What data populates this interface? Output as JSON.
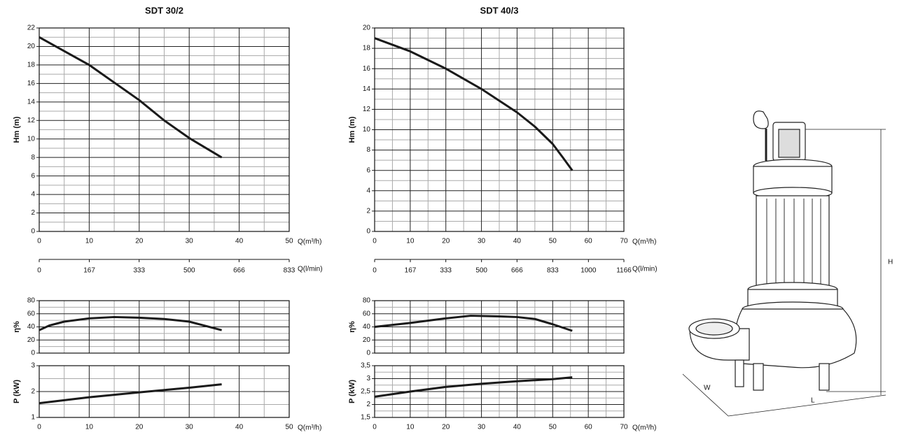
{
  "chart_data": [
    {
      "type": "line",
      "title": "SDT 30/2",
      "ylabel": "Hm   (m)",
      "xlabel": "Q(m³/h)",
      "xlim": [
        0,
        50
      ],
      "xticks": [
        0,
        10,
        20,
        30,
        40,
        50
      ],
      "ylim": [
        0,
        22
      ],
      "yticks": [
        0,
        2,
        4,
        6,
        8,
        10,
        12,
        14,
        16,
        18,
        20,
        22
      ],
      "x2label": "Q(l/min)",
      "x2lim": [
        0,
        833
      ],
      "x2ticks": [
        0,
        167,
        333,
        500,
        666,
        833
      ],
      "grid": true,
      "color": "#1a1a1a",
      "x": [
        0,
        5,
        10,
        15,
        20,
        25,
        30,
        36.5
      ],
      "values": [
        21,
        19.5,
        18,
        16.1,
        14.2,
        12,
        10.1,
        8
      ]
    },
    {
      "type": "line",
      "ylabel": "η%",
      "xlim": [
        0,
        50
      ],
      "xticks": [
        0,
        10,
        20,
        30,
        40,
        50
      ],
      "xtick_labels": false,
      "ylim": [
        0,
        80
      ],
      "yticks": [
        0,
        20,
        40,
        60,
        80
      ],
      "grid": true,
      "color": "#1a1a1a",
      "x": [
        0,
        2,
        5,
        10,
        15,
        20,
        25,
        30,
        36.5
      ],
      "values": [
        35,
        42,
        48,
        53,
        55,
        54,
        52,
        48,
        35
      ]
    },
    {
      "type": "line",
      "ylabel": "P  (kW)",
      "xlabel": "Q(m³/h)",
      "xlim": [
        0,
        50
      ],
      "xticks": [
        0,
        10,
        20,
        30,
        40,
        50
      ],
      "ylim": [
        1,
        3
      ],
      "yticks": [
        1,
        2,
        3
      ],
      "grid": true,
      "color": "#1a1a1a",
      "x": [
        0,
        10,
        20,
        30,
        36.5
      ],
      "values": [
        1.55,
        1.78,
        1.97,
        2.15,
        2.28
      ]
    },
    {
      "type": "line",
      "title": "SDT 40/3",
      "ylabel": "Hm   (m)",
      "xlabel": "Q(m³/h)",
      "xlim": [
        0,
        70
      ],
      "xticks": [
        0,
        10,
        20,
        30,
        40,
        50,
        60,
        70
      ],
      "ylim": [
        0,
        20
      ],
      "yticks": [
        0,
        2,
        4,
        6,
        8,
        10,
        12,
        14,
        16,
        18,
        20
      ],
      "x2label": "Q(l/min)",
      "x2lim": [
        0,
        1166
      ],
      "x2ticks": [
        0,
        167,
        333,
        500,
        666,
        833,
        1000,
        1166
      ],
      "grid": true,
      "color": "#1a1a1a",
      "x": [
        0,
        10,
        20,
        30,
        40,
        45,
        50,
        53,
        55.5
      ],
      "values": [
        19,
        17.7,
        16,
        14,
        11.7,
        10.3,
        8.6,
        7.2,
        6
      ]
    },
    {
      "type": "line",
      "ylabel": "η%",
      "xlim": [
        0,
        70
      ],
      "xticks": [
        0,
        10,
        20,
        30,
        40,
        50,
        60,
        70
      ],
      "xtick_labels": false,
      "ylim": [
        0,
        80
      ],
      "yticks": [
        0,
        20,
        40,
        60,
        80
      ],
      "grid": true,
      "color": "#1a1a1a",
      "x": [
        0,
        10,
        20,
        27,
        35,
        40,
        45,
        50,
        55.5
      ],
      "values": [
        40,
        46,
        53,
        57,
        56,
        55,
        52,
        44,
        34
      ]
    },
    {
      "type": "line",
      "ylabel": "P  (kW)",
      "xlabel": "Q(m³/h)",
      "xlim": [
        0,
        70
      ],
      "xticks": [
        0,
        10,
        20,
        30,
        40,
        50,
        60,
        70
      ],
      "ylim": [
        1.5,
        3.5
      ],
      "yticks": [
        {
          "value": 1.5,
          "label": "1,5"
        },
        2,
        {
          "value": 2.5,
          "label": "2,5"
        },
        3,
        {
          "value": 3.5,
          "label": "3,5"
        }
      ],
      "grid": true,
      "color": "#1a1a1a",
      "x": [
        0,
        10,
        20,
        30,
        40,
        50,
        55.5
      ],
      "values": [
        2.3,
        2.5,
        2.68,
        2.8,
        2.9,
        2.98,
        3.05
      ]
    }
  ],
  "pump_drawing": {
    "height_label": "H",
    "length_label": "L",
    "width_label": "W"
  }
}
